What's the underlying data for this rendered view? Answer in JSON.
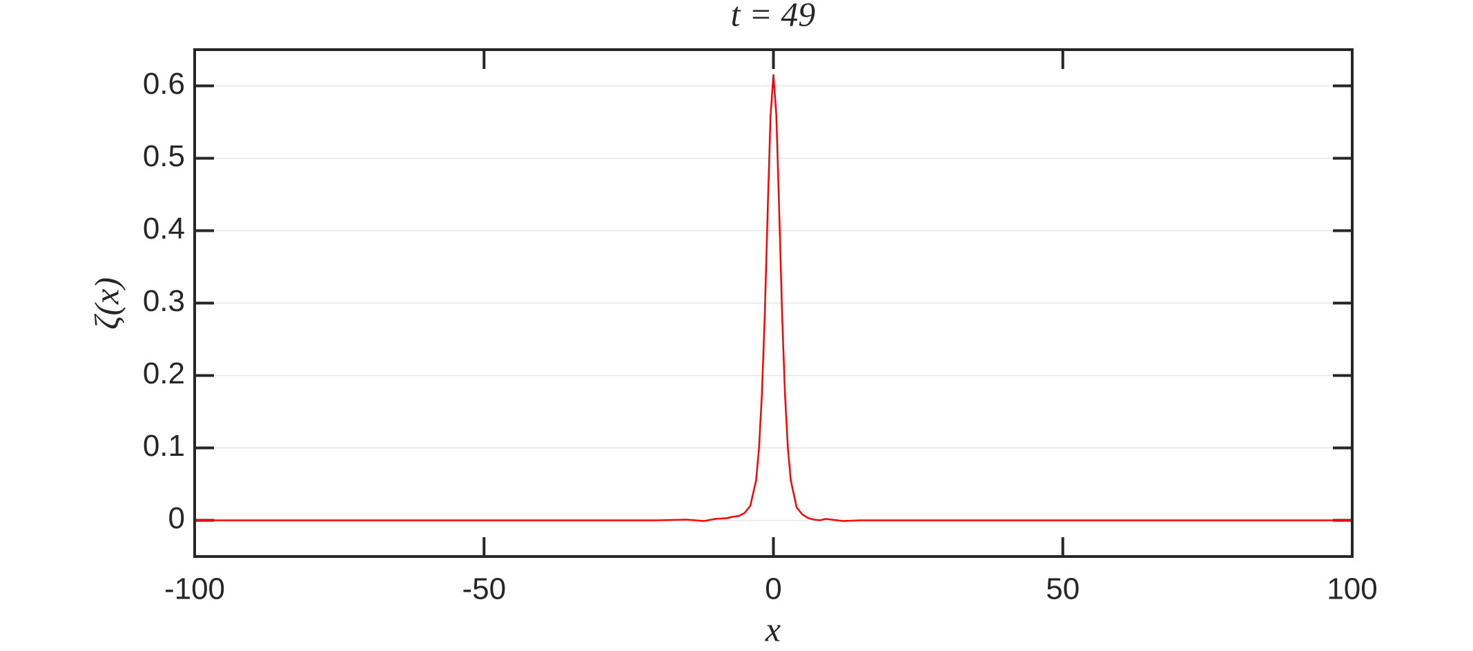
{
  "chart_data": {
    "type": "line",
    "title": "t = 49",
    "xlabel": "x",
    "ylabel": "ζ(x)",
    "series": [
      {
        "name": "ζ",
        "color": "#ff0000",
        "x": [
          -100,
          -20,
          -15,
          -12,
          -10,
          -8,
          -7,
          -6,
          -5,
          -4,
          -3,
          -2.5,
          -2,
          -1.5,
          -1,
          -0.5,
          0,
          0.5,
          1,
          1.5,
          2,
          2.5,
          3,
          4,
          5,
          6,
          7,
          8,
          9,
          10,
          12,
          15,
          20,
          100
        ],
        "values": [
          0,
          0,
          0.001,
          -0.001,
          0.002,
          0.003,
          0.005,
          0.006,
          0.01,
          0.02,
          0.055,
          0.099,
          0.173,
          0.283,
          0.426,
          0.559,
          0.615,
          0.559,
          0.426,
          0.283,
          0.173,
          0.099,
          0.055,
          0.018,
          0.008,
          0.003,
          0.001,
          0.0,
          0.002,
          0.001,
          -0.001,
          0.0,
          0,
          0
        ]
      }
    ],
    "xlim": [
      -100,
      100
    ],
    "ylim": [
      -0.05,
      0.65
    ],
    "xticks": [
      -100,
      -50,
      0,
      50,
      100
    ],
    "yticks": [
      0,
      0.1,
      0.2,
      0.3,
      0.4,
      0.5,
      0.6
    ],
    "grid": true
  }
}
